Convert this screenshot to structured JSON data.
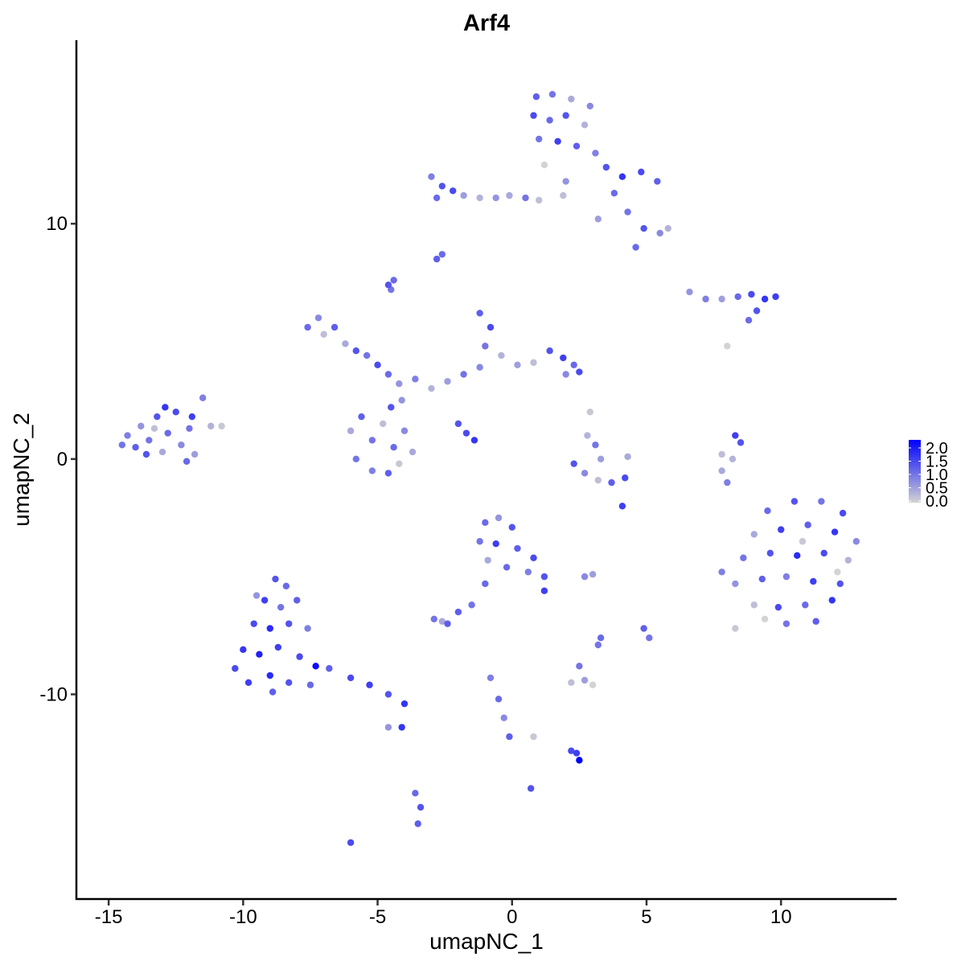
{
  "chart_data": {
    "type": "scatter",
    "title": "Arf4",
    "xlabel": "umapNC_1",
    "ylabel": "umapNC_2",
    "xlim": [
      -16.2,
      14.3
    ],
    "ylim": [
      -18.7,
      17.8
    ],
    "xticks": [
      -15,
      -10,
      -5,
      0,
      5,
      10
    ],
    "yticks": [
      -10,
      0,
      10
    ],
    "grid": false,
    "color_scale": {
      "low": "#D3D3D3",
      "high": "#0000FF",
      "min": 0.0,
      "max": 2.0,
      "legend_ticks": [
        "0.0",
        "0.5",
        "1.0",
        "1.5",
        "2.0"
      ],
      "legend_position": "right"
    },
    "points": [
      [
        -14.3,
        1.0,
        0.8
      ],
      [
        -14.0,
        0.5,
        1.1
      ],
      [
        -13.8,
        1.4,
        0.6
      ],
      [
        -13.5,
        0.8,
        0.9
      ],
      [
        -13.2,
        1.8,
        1.2
      ],
      [
        -13.0,
        0.3,
        0.4
      ],
      [
        -12.8,
        1.1,
        1.0
      ],
      [
        -12.5,
        2.0,
        1.3
      ],
      [
        -12.3,
        0.6,
        0.7
      ],
      [
        -12.0,
        1.3,
        0.9
      ],
      [
        -11.8,
        0.2,
        0.5
      ],
      [
        -11.5,
        2.6,
        0.8
      ],
      [
        -11.2,
        1.4,
        0.3
      ],
      [
        -10.8,
        1.4,
        0.1
      ],
      [
        -13.6,
        0.2,
        1.2
      ],
      [
        -14.5,
        0.6,
        0.9
      ],
      [
        -12.9,
        2.2,
        1.5
      ],
      [
        -12.1,
        -0.1,
        1.0
      ],
      [
        -13.3,
        1.3,
        0.2
      ],
      [
        -11.9,
        1.8,
        1.4
      ],
      [
        -8.8,
        -5.1,
        1.2
      ],
      [
        -8.4,
        -5.4,
        1.0
      ],
      [
        -9.2,
        -6.0,
        1.4
      ],
      [
        -8.6,
        -6.3,
        0.9
      ],
      [
        -8.0,
        -6.0,
        1.1
      ],
      [
        -9.6,
        -7.0,
        1.3
      ],
      [
        -9.0,
        -7.2,
        1.6
      ],
      [
        -8.3,
        -7.0,
        1.2
      ],
      [
        -7.6,
        -7.2,
        0.8
      ],
      [
        -10.0,
        -8.1,
        1.5
      ],
      [
        -9.4,
        -8.3,
        1.7
      ],
      [
        -8.7,
        -8.0,
        1.4
      ],
      [
        -7.9,
        -8.4,
        1.3
      ],
      [
        -7.3,
        -8.8,
        1.9
      ],
      [
        -10.3,
        -8.9,
        1.3
      ],
      [
        -9.8,
        -9.5,
        1.4
      ],
      [
        -9.0,
        -9.2,
        1.6
      ],
      [
        -8.3,
        -9.5,
        1.2
      ],
      [
        -7.5,
        -9.6,
        1.0
      ],
      [
        -6.8,
        -8.9,
        1.1
      ],
      [
        -6.0,
        -9.3,
        1.3
      ],
      [
        -5.3,
        -9.6,
        1.4
      ],
      [
        -4.6,
        -10.0,
        1.2
      ],
      [
        -4.0,
        -10.4,
        1.5
      ],
      [
        -9.5,
        -5.8,
        0.6
      ],
      [
        -8.9,
        -9.9,
        1.1
      ],
      [
        9.5,
        -2.2,
        1.0
      ],
      [
        10.5,
        -1.8,
        1.2
      ],
      [
        11.5,
        -1.8,
        0.9
      ],
      [
        12.3,
        -2.3,
        1.3
      ],
      [
        9.0,
        -3.2,
        0.4
      ],
      [
        10.0,
        -3.0,
        1.4
      ],
      [
        11.0,
        -2.8,
        1.1
      ],
      [
        12.0,
        -3.1,
        1.5
      ],
      [
        12.8,
        -3.5,
        0.7
      ],
      [
        8.6,
        -4.2,
        0.9
      ],
      [
        9.6,
        -4.0,
        1.2
      ],
      [
        10.6,
        -4.1,
        1.6
      ],
      [
        11.6,
        -4.0,
        1.3
      ],
      [
        12.5,
        -4.3,
        0.3
      ],
      [
        8.3,
        -5.3,
        0.6
      ],
      [
        9.3,
        -5.1,
        1.1
      ],
      [
        10.2,
        -5.0,
        0.8
      ],
      [
        11.2,
        -5.2,
        1.4
      ],
      [
        12.2,
        -5.3,
        1.2
      ],
      [
        9.0,
        -6.2,
        0.2
      ],
      [
        9.9,
        -6.3,
        1.3
      ],
      [
        10.9,
        -6.2,
        1.0
      ],
      [
        11.9,
        -6.0,
        1.5
      ],
      [
        10.2,
        -7.0,
        0.9
      ],
      [
        11.3,
        -6.9,
        1.1
      ],
      [
        8.3,
        -7.2,
        0.1
      ],
      [
        7.8,
        -4.8,
        0.8
      ],
      [
        10.8,
        -3.5,
        0.1
      ],
      [
        12.1,
        -4.8,
        0.0
      ],
      [
        9.4,
        -6.8,
        0.0
      ],
      [
        0.9,
        15.4,
        1.1
      ],
      [
        1.5,
        15.5,
        0.9
      ],
      [
        2.2,
        15.3,
        0.4
      ],
      [
        2.9,
        15.0,
        0.7
      ],
      [
        0.8,
        14.6,
        1.3
      ],
      [
        1.4,
        14.4,
        1.0
      ],
      [
        2.0,
        14.6,
        1.2
      ],
      [
        2.7,
        14.2,
        0.3
      ],
      [
        1.0,
        13.6,
        0.9
      ],
      [
        1.7,
        13.5,
        1.4
      ],
      [
        2.4,
        13.3,
        1.1
      ],
      [
        3.1,
        13.0,
        0.8
      ],
      [
        3.5,
        12.4,
        1.2
      ],
      [
        4.1,
        12.0,
        1.5
      ],
      [
        4.8,
        12.2,
        1.3
      ],
      [
        5.4,
        11.8,
        1.1
      ],
      [
        3.8,
        11.3,
        1.0
      ],
      [
        4.3,
        10.5,
        0.9
      ],
      [
        4.9,
        9.8,
        1.2
      ],
      [
        5.5,
        9.6,
        0.7
      ],
      [
        5.8,
        9.8,
        0.3
      ],
      [
        4.6,
        9.0,
        1.0
      ],
      [
        3.2,
        10.2,
        0.5
      ],
      [
        2.0,
        11.8,
        0.6
      ],
      [
        1.2,
        12.5,
        0.0
      ],
      [
        1.9,
        11.2,
        0.2
      ],
      [
        -3.0,
        12.0,
        0.8
      ],
      [
        -2.6,
        11.6,
        1.2
      ],
      [
        -2.8,
        11.1,
        1.0
      ],
      [
        -2.2,
        11.4,
        1.3
      ],
      [
        -1.8,
        11.2,
        0.5
      ],
      [
        -1.2,
        11.1,
        0.3
      ],
      [
        -0.6,
        11.1,
        0.6
      ],
      [
        -0.1,
        11.2,
        0.4
      ],
      [
        0.5,
        11.1,
        0.9
      ],
      [
        1.0,
        11.0,
        0.2
      ],
      [
        -2.8,
        8.5,
        1.1
      ],
      [
        -2.6,
        8.7,
        1.0
      ],
      [
        -4.6,
        7.4,
        1.2
      ],
      [
        -4.4,
        7.6,
        1.0
      ],
      [
        -4.5,
        7.2,
        0.9
      ],
      [
        -7.6,
        5.6,
        1.0
      ],
      [
        -7.2,
        6.0,
        0.7
      ],
      [
        -7.0,
        5.3,
        0.2
      ],
      [
        -6.6,
        5.6,
        1.1
      ],
      [
        -6.2,
        4.9,
        0.4
      ],
      [
        -5.8,
        4.6,
        1.2
      ],
      [
        -5.4,
        4.4,
        0.9
      ],
      [
        -5.0,
        4.0,
        1.3
      ],
      [
        -4.6,
        3.6,
        1.0
      ],
      [
        -4.2,
        3.2,
        0.6
      ],
      [
        -3.6,
        3.4,
        0.8
      ],
      [
        -3.0,
        3.0,
        0.3
      ],
      [
        -2.4,
        3.3,
        0.5
      ],
      [
        -1.8,
        3.6,
        0.9
      ],
      [
        -1.2,
        3.9,
        0.7
      ],
      [
        -6.0,
        1.2,
        0.4
      ],
      [
        -5.6,
        1.8,
        1.1
      ],
      [
        -5.2,
        0.8,
        0.9
      ],
      [
        -4.8,
        1.5,
        0.2
      ],
      [
        -4.4,
        0.5,
        1.0
      ],
      [
        -4.0,
        1.2,
        0.7
      ],
      [
        -3.7,
        0.3,
        0.4
      ],
      [
        -5.8,
        0.0,
        0.9
      ],
      [
        -5.2,
        -0.5,
        0.8
      ],
      [
        -4.6,
        -0.6,
        1.1
      ],
      [
        -4.2,
        -0.2,
        0.1
      ],
      [
        -4.5,
        2.2,
        1.2
      ],
      [
        -4.1,
        2.5,
        0.6
      ],
      [
        -1.2,
        6.2,
        1.1
      ],
      [
        -0.8,
        5.6,
        1.3
      ],
      [
        -1.0,
        4.8,
        0.9
      ],
      [
        -0.4,
        4.4,
        0.3
      ],
      [
        0.2,
        4.0,
        0.5
      ],
      [
        0.8,
        4.1,
        0.2
      ],
      [
        1.4,
        4.6,
        1.2
      ],
      [
        1.9,
        4.3,
        1.4
      ],
      [
        2.3,
        4.0,
        1.0
      ],
      [
        2.5,
        3.7,
        1.3
      ],
      [
        2.0,
        3.6,
        0.7
      ],
      [
        -2.0,
        1.5,
        1.2
      ],
      [
        -1.7,
        1.1,
        1.3
      ],
      [
        -1.4,
        0.8,
        1.5
      ],
      [
        6.6,
        7.1,
        0.6
      ],
      [
        7.2,
        6.8,
        0.8
      ],
      [
        7.8,
        6.8,
        0.5
      ],
      [
        8.4,
        6.9,
        1.0
      ],
      [
        8.9,
        7.0,
        1.3
      ],
      [
        9.4,
        6.8,
        1.5
      ],
      [
        9.8,
        6.9,
        1.4
      ],
      [
        9.1,
        6.3,
        1.2
      ],
      [
        8.8,
        5.9,
        1.0
      ],
      [
        8.0,
        4.8,
        0.0
      ],
      [
        8.2,
        0.0,
        0.3
      ],
      [
        8.5,
        0.7,
        1.2
      ],
      [
        8.3,
        1.0,
        1.4
      ],
      [
        7.8,
        0.2,
        0.2
      ],
      [
        7.8,
        -0.5,
        0.4
      ],
      [
        8.0,
        -1.0,
        0.8
      ],
      [
        2.8,
        1.0,
        0.3
      ],
      [
        3.1,
        0.6,
        0.9
      ],
      [
        3.3,
        0.0,
        0.5
      ],
      [
        2.3,
        -0.2,
        1.2
      ],
      [
        2.7,
        -0.6,
        0.7
      ],
      [
        3.2,
        -0.9,
        0.2
      ],
      [
        3.7,
        -1.0,
        1.1
      ],
      [
        4.2,
        -0.8,
        1.3
      ],
      [
        4.3,
        0.1,
        0.4
      ],
      [
        2.9,
        2.0,
        0.1
      ],
      [
        4.1,
        -2.0,
        1.4
      ],
      [
        -1.0,
        -2.7,
        1.0
      ],
      [
        -0.5,
        -2.5,
        0.6
      ],
      [
        0.0,
        -2.9,
        1.2
      ],
      [
        -1.2,
        -3.5,
        0.9
      ],
      [
        -0.6,
        -3.6,
        1.4
      ],
      [
        0.2,
        -3.8,
        1.1
      ],
      [
        0.8,
        -4.2,
        1.3
      ],
      [
        -0.9,
        -4.3,
        0.4
      ],
      [
        -0.2,
        -4.6,
        1.0
      ],
      [
        0.6,
        -4.8,
        0.8
      ],
      [
        1.2,
        -5.0,
        1.2
      ],
      [
        1.2,
        -5.6,
        1.4
      ],
      [
        -1.0,
        -5.3,
        1.0
      ],
      [
        -1.5,
        -6.2,
        0.9
      ],
      [
        -2.0,
        -6.5,
        1.1
      ],
      [
        -2.9,
        -6.8,
        0.9
      ],
      [
        -2.4,
        -7.0,
        1.1
      ],
      [
        -2.6,
        -6.9,
        0.4
      ],
      [
        2.7,
        -5.0,
        0.7
      ],
      [
        3.0,
        -4.9,
        0.5
      ],
      [
        3.3,
        -7.6,
        1.0
      ],
      [
        3.2,
        -7.9,
        0.9
      ],
      [
        4.9,
        -7.2,
        1.1
      ],
      [
        5.1,
        -7.6,
        0.9
      ],
      [
        2.2,
        -9.5,
        0.2
      ],
      [
        2.7,
        -9.4,
        0.5
      ],
      [
        3.0,
        -9.6,
        0.0
      ],
      [
        2.5,
        -8.8,
        0.9
      ],
      [
        -0.8,
        -9.3,
        0.8
      ],
      [
        -0.5,
        -10.2,
        1.0
      ],
      [
        -0.3,
        -11.0,
        0.7
      ],
      [
        -0.1,
        -11.8,
        1.1
      ],
      [
        0.8,
        -11.8,
        0.1
      ],
      [
        2.4,
        -12.5,
        1.4
      ],
      [
        2.5,
        -12.8,
        2.0
      ],
      [
        2.2,
        -12.4,
        1.3
      ],
      [
        -3.6,
        -14.2,
        1.0
      ],
      [
        -3.4,
        -14.8,
        1.2
      ],
      [
        -3.5,
        -15.5,
        1.1
      ],
      [
        -6.0,
        -16.3,
        1.3
      ],
      [
        0.7,
        -14.0,
        1.2
      ],
      [
        -4.1,
        -11.4,
        1.5
      ],
      [
        -4.6,
        -11.4,
        0.6
      ]
    ]
  }
}
